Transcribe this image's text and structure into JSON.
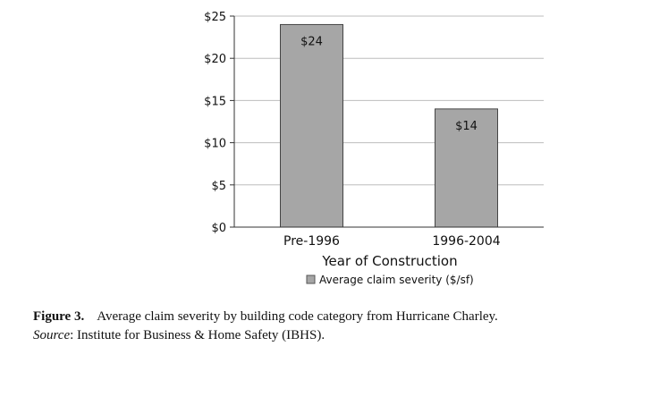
{
  "chart_data": {
    "type": "bar",
    "categories": [
      "Pre-1996",
      "1996-2004"
    ],
    "series": [
      {
        "name": "Average claim severity ($/sf)",
        "values": [
          24,
          14
        ],
        "color": "#a6a6a6"
      }
    ],
    "data_labels": [
      "$24",
      "$14"
    ],
    "xlabel": "Year of Construction",
    "ylabel": "",
    "ylim": [
      0,
      25
    ],
    "yticks": [
      0,
      5,
      10,
      15,
      20,
      25
    ],
    "ytick_labels": [
      "$0",
      "$5",
      "$10",
      "$15",
      "$20",
      "$25"
    ],
    "grid": true,
    "legend_position": "bottom"
  },
  "caption": {
    "figure_label": "Figure 3.",
    "text": "Average claim severity by building code category from Hurricane Charley.",
    "source_label": "Source",
    "source_text": ": Institute for Business & Home Safety (IBHS)."
  }
}
